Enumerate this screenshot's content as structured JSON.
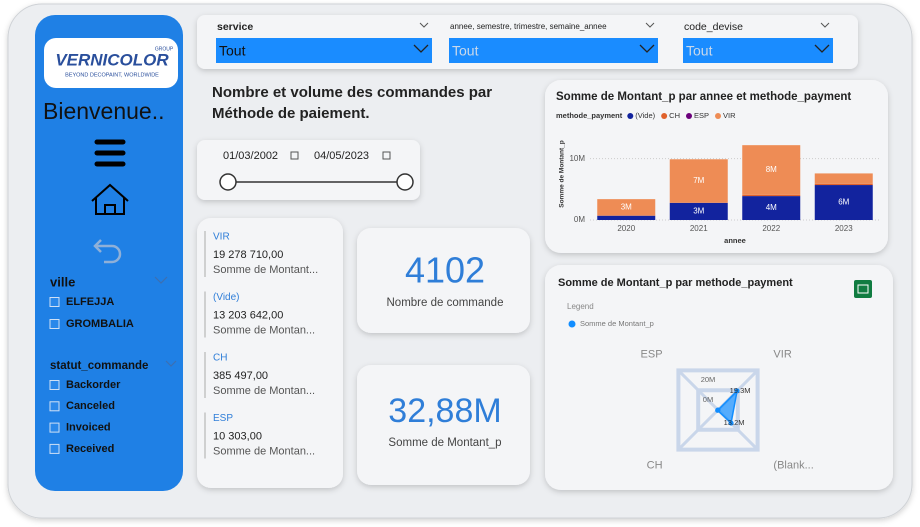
{
  "sidebar": {
    "logo": "VERNICOLOR",
    "logo_group": "GROUP",
    "logo_tagline": "BEYOND DECOPAINT, WORLDWIDE",
    "welcome": "Bienvenue..",
    "filters": [
      {
        "title": "ville",
        "items": [
          "ELFEJJA",
          "GROMBALIA"
        ]
      },
      {
        "title": "statut_commande",
        "items": [
          "Backorder",
          "Canceled",
          "Invoiced",
          "Received"
        ]
      }
    ]
  },
  "slicers": [
    {
      "label": "service",
      "value": "Tout"
    },
    {
      "label": "annee, semestre, trimestre, semaine_annee",
      "value": "Tout"
    },
    {
      "label": "code_devise",
      "value": "Tout"
    }
  ],
  "heading": "Nombre et volume des commandes par Méthode de paiement.",
  "date_range": {
    "start": "01/03/2002",
    "end": "04/05/2023"
  },
  "payment_cards": [
    {
      "label": "VIR",
      "value": "19 278 710,00",
      "caption": "Somme de Montant..."
    },
    {
      "label": "(Vide)",
      "value": "13 203 642,00",
      "caption": "Somme de Montan..."
    },
    {
      "label": "CH",
      "value": "385 497,00",
      "caption": "Somme de Montan..."
    },
    {
      "label": "ESP",
      "value": "10 303,00",
      "caption": "Somme de Montan..."
    }
  ],
  "kpis": [
    {
      "value": "4102",
      "label": "Nombre de commande"
    },
    {
      "value": "32,88M",
      "label": "Somme de Montant_p"
    }
  ],
  "chart_data": [
    {
      "type": "bar",
      "stacked": true,
      "title": "Somme de Montant_p par annee et methode_payment",
      "legend_title": "methode_payment",
      "x_label": "annee",
      "y_label": "Somme de Montant_p",
      "categories": [
        "2020",
        "2021",
        "2022",
        "2023"
      ],
      "series": [
        {
          "name": "(Vide)",
          "color": "#12239e",
          "values": [
            700000,
            2800000,
            3900000,
            5700000
          ],
          "value_labels": [
            null,
            "3M",
            "4M",
            "6M"
          ]
        },
        {
          "name": "CH",
          "color": "#e0612b",
          "values": [
            0,
            0,
            200000,
            185000
          ]
        },
        {
          "name": "ESP",
          "color": "#6b007b",
          "values": [
            0,
            0,
            0,
            10000
          ]
        },
        {
          "name": "VIR",
          "color": "#ee8c55",
          "values": [
            2700000,
            7100000,
            8100000,
            1700000
          ],
          "value_labels": [
            "3M",
            "7M",
            "8M",
            null
          ]
        }
      ],
      "ylim": [
        0,
        15000000
      ],
      "yticks": [
        {
          "value": 0,
          "label": "0M"
        },
        {
          "value": 10000000,
          "label": "10M"
        }
      ],
      "grid": true
    },
    {
      "type": "radar",
      "title": "Somme de Montant_p par methode_payment",
      "legend_title": "Legend",
      "categories": [
        "ESP",
        "VIR",
        "(Blank...",
        "CH"
      ],
      "series": [
        {
          "name": "Somme de Montant_p",
          "color": "#118dff",
          "values": [
            10303,
            19278710,
            13203642,
            385497
          ],
          "value_labels": [
            null,
            "19.3M",
            "13.2M",
            null
          ]
        }
      ],
      "rlim": [
        0,
        40000000
      ],
      "rticks": [
        {
          "value": 0,
          "label": "0M"
        },
        {
          "value": 20000000,
          "label": "20M"
        }
      ]
    }
  ]
}
